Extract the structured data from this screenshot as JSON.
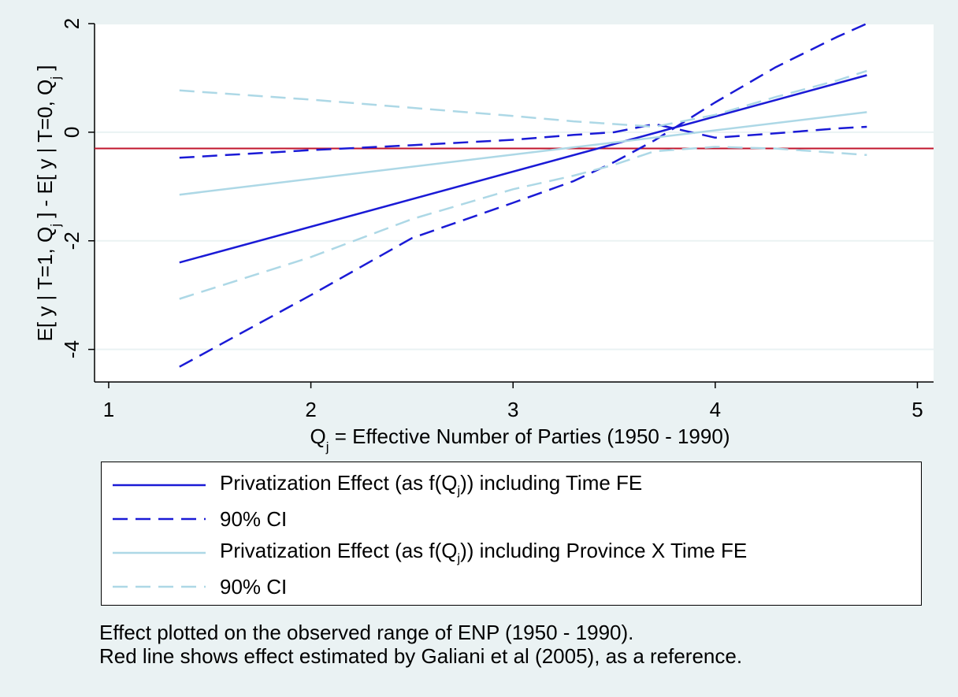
{
  "chart_data": {
    "type": "line",
    "xlabel_main": "Q",
    "xlabel_sub": "j",
    "xlabel_rest": " = Effective Number of Parties (1950 - 1990)",
    "ylabel_text": "E[ y | T=1, Qj ] - E[ y | T=0, Qj ]",
    "xlim": [
      0.93,
      5.08
    ],
    "ylim": [
      -4.6,
      2.0
    ],
    "xticks": [
      1,
      2,
      3,
      4,
      5
    ],
    "yticks": [
      -4,
      -2,
      0,
      2
    ],
    "grid": true,
    "reference_line": {
      "y": -0.3,
      "color": "#c1152c"
    },
    "series": [
      {
        "name": "Privatization Effect (as f(Qj)) including Time FE",
        "color": "#1a1ad6",
        "dash": false,
        "x": [
          1.35,
          4.75
        ],
        "y": [
          -2.4,
          1.05
        ]
      },
      {
        "name": "90% CI",
        "color": "#1a1ad6",
        "dash": true,
        "x": [
          1.35,
          2.0,
          2.5,
          3.0,
          3.3,
          3.5,
          3.7,
          4.0,
          4.3,
          4.6,
          4.75
        ],
        "y": [
          -4.32,
          -3.0,
          -1.95,
          -1.3,
          -0.9,
          -0.55,
          -0.15,
          0.55,
          1.2,
          1.75,
          2.0
        ]
      },
      {
        "name": "90% CI",
        "color": "#1a1ad6",
        "dash": true,
        "x": [
          1.35,
          2.0,
          2.5,
          3.0,
          3.3,
          3.5,
          3.7,
          4.0,
          4.3,
          4.6,
          4.75
        ],
        "y": [
          -0.47,
          -0.33,
          -0.24,
          -0.14,
          -0.05,
          0.0,
          0.15,
          -0.1,
          -0.02,
          0.07,
          0.1
        ]
      },
      {
        "name": "Privatization Effect (as f(Qj)) including Province X Time FE",
        "color": "#add8e6",
        "dash": false,
        "x": [
          1.35,
          4.75
        ],
        "y": [
          -1.15,
          0.37
        ]
      },
      {
        "name": "90% CI",
        "color": "#add8e6",
        "dash": true,
        "x": [
          1.35,
          2.0,
          2.5,
          3.0,
          3.3,
          3.5,
          3.7,
          4.0,
          4.3,
          4.6,
          4.75
        ],
        "y": [
          0.77,
          0.6,
          0.45,
          0.3,
          0.2,
          0.15,
          0.1,
          0.32,
          0.65,
          0.95,
          1.13
        ]
      },
      {
        "name": "90% CI",
        "color": "#add8e6",
        "dash": true,
        "x": [
          1.35,
          2.0,
          2.5,
          3.0,
          3.3,
          3.5,
          3.7,
          4.0,
          4.3,
          4.6,
          4.75
        ],
        "y": [
          -3.07,
          -2.3,
          -1.6,
          -1.05,
          -0.8,
          -0.6,
          -0.35,
          -0.27,
          -0.3,
          -0.38,
          -0.42
        ]
      }
    ]
  },
  "legend": [
    {
      "pre": "Privatization Effect (as f(Q",
      "sub": "j",
      "post": ")) including Time FE"
    },
    {
      "pre": "90% CI",
      "sub": "",
      "post": ""
    },
    {
      "pre": "Privatization Effect (as f(Q",
      "sub": "j",
      "post": ")) including Province X Time FE"
    },
    {
      "pre": "90% CI",
      "sub": "",
      "post": ""
    }
  ],
  "notes": {
    "line1": "Effect plotted on the observed range of ENP (1950 - 1990).",
    "line2": "Red line shows effect estimated by Galiani et al (2005), as a reference."
  },
  "style": {
    "plot_bg": "#ffffff",
    "page_bg": "#eaf2f3",
    "grid_color": "#eaf2f3"
  }
}
